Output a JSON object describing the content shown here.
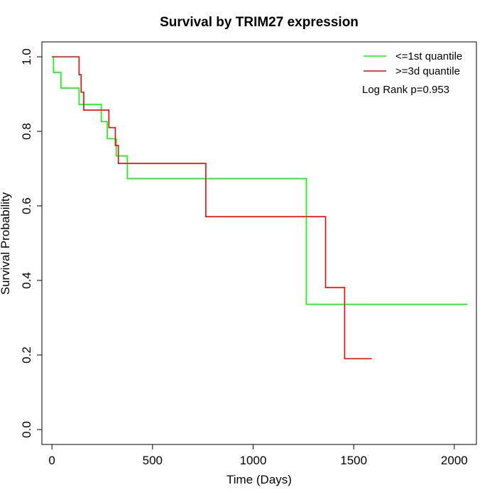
{
  "chart_data": {
    "type": "line",
    "title": "Survival by TRIM27 expression",
    "xlabel": "Time (Days)",
    "ylabel": "Survival Probability",
    "xlim": [
      -50,
      2110
    ],
    "ylim": [
      -0.04,
      1.04
    ],
    "xticks": [
      0,
      500,
      1000,
      1500,
      2000
    ],
    "yticks": [
      0.0,
      0.2,
      0.4,
      0.6,
      0.8,
      1.0
    ],
    "xtick_labels": [
      "0",
      "500",
      "1000",
      "1500",
      "2000"
    ],
    "ytick_labels": [
      "0.0",
      "0.2",
      "0.4",
      "0.6",
      "0.8",
      "1.0"
    ],
    "grid": false,
    "legend_position": "top-right",
    "annotation": "Log Rank p=0.953",
    "series": [
      {
        "name": "<=1st quantile",
        "color": "#00ff00",
        "step": true,
        "x": [
          0,
          8,
          45,
          135,
          245,
          275,
          320,
          335,
          375,
          1265,
          2065
        ],
        "y": [
          1.0,
          0.958,
          0.916,
          0.872,
          0.826,
          0.78,
          0.734,
          0.734,
          0.673,
          0.336,
          0.336
        ]
      },
      {
        "name": ">=3d quantile",
        "color": "#ff0000",
        "step": true,
        "x": [
          0,
          135,
          145,
          158,
          283,
          315,
          330,
          355,
          765,
          1360,
          1455,
          1590
        ],
        "y": [
          1.0,
          0.952,
          0.905,
          0.857,
          0.81,
          0.762,
          0.714,
          0.714,
          0.571,
          0.381,
          0.19,
          0.19
        ]
      }
    ]
  }
}
